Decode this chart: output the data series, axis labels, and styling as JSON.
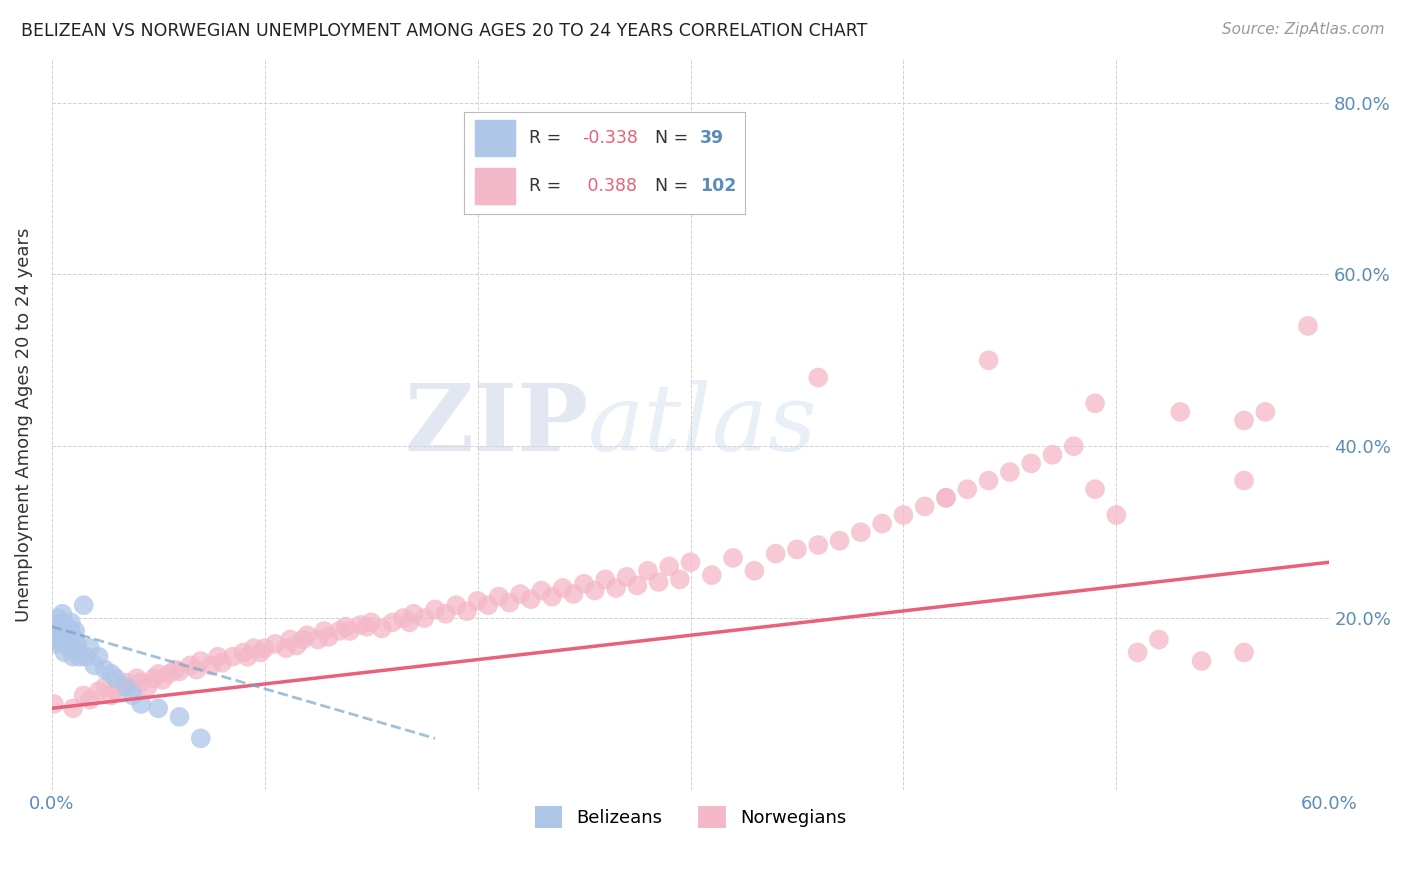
{
  "title": "BELIZEAN VS NORWEGIAN UNEMPLOYMENT AMONG AGES 20 TO 24 YEARS CORRELATION CHART",
  "source": "Source: ZipAtlas.com",
  "ylabel": "Unemployment Among Ages 20 to 24 years",
  "xlim": [
    0.0,
    0.6
  ],
  "ylim": [
    0.0,
    0.85
  ],
  "xticks": [
    0.0,
    0.1,
    0.2,
    0.3,
    0.4,
    0.5,
    0.6
  ],
  "xlabel_ticks": [
    "0.0%",
    "",
    "",
    "",
    "",
    "",
    "60.0%"
  ],
  "right_ytick_labels": [
    "20.0%",
    "40.0%",
    "60.0%",
    "80.0%"
  ],
  "right_yticks": [
    0.2,
    0.4,
    0.6,
    0.8
  ],
  "legend_r_belizean": "-0.338",
  "legend_n_belizean": "39",
  "legend_r_norwegian": "0.388",
  "legend_n_norwegian": "102",
  "belizean_color": "#aec6e8",
  "norwegian_color": "#f4b8c8",
  "belizean_line_color": "#6fa0c8",
  "norwegian_line_color": "#e8607a",
  "background_color": "#ffffff",
  "watermark_zip": "ZIP",
  "watermark_atlas": "atlas",
  "belizean_x": [
    0.001,
    0.001,
    0.002,
    0.002,
    0.003,
    0.003,
    0.004,
    0.004,
    0.005,
    0.005,
    0.006,
    0.006,
    0.007,
    0.007,
    0.008,
    0.008,
    0.009,
    0.009,
    0.01,
    0.01,
    0.011,
    0.011,
    0.012,
    0.012,
    0.013,
    0.015,
    0.016,
    0.018,
    0.02,
    0.022,
    0.025,
    0.028,
    0.03,
    0.035,
    0.038,
    0.042,
    0.05,
    0.06,
    0.07
  ],
  "belizean_y": [
    0.175,
    0.185,
    0.17,
    0.18,
    0.19,
    0.2,
    0.175,
    0.185,
    0.195,
    0.205,
    0.16,
    0.17,
    0.18,
    0.19,
    0.165,
    0.175,
    0.185,
    0.195,
    0.155,
    0.165,
    0.175,
    0.185,
    0.16,
    0.17,
    0.155,
    0.215,
    0.155,
    0.165,
    0.145,
    0.155,
    0.14,
    0.135,
    0.13,
    0.12,
    0.11,
    0.1,
    0.095,
    0.085,
    0.06
  ],
  "norwegian_x": [
    0.001,
    0.01,
    0.015,
    0.018,
    0.022,
    0.025,
    0.028,
    0.03,
    0.032,
    0.035,
    0.038,
    0.04,
    0.042,
    0.045,
    0.048,
    0.05,
    0.052,
    0.055,
    0.058,
    0.06,
    0.065,
    0.068,
    0.07,
    0.075,
    0.078,
    0.08,
    0.085,
    0.09,
    0.092,
    0.095,
    0.098,
    0.1,
    0.105,
    0.11,
    0.112,
    0.115,
    0.118,
    0.12,
    0.125,
    0.128,
    0.13,
    0.135,
    0.138,
    0.14,
    0.145,
    0.148,
    0.15,
    0.155,
    0.16,
    0.165,
    0.168,
    0.17,
    0.175,
    0.18,
    0.185,
    0.19,
    0.195,
    0.2,
    0.205,
    0.21,
    0.215,
    0.22,
    0.225,
    0.23,
    0.235,
    0.24,
    0.245,
    0.25,
    0.255,
    0.26,
    0.265,
    0.27,
    0.275,
    0.28,
    0.285,
    0.29,
    0.295,
    0.3,
    0.31,
    0.32,
    0.33,
    0.34,
    0.35,
    0.36,
    0.37,
    0.38,
    0.39,
    0.4,
    0.41,
    0.42,
    0.43,
    0.44,
    0.45,
    0.46,
    0.47,
    0.48,
    0.49,
    0.5,
    0.51,
    0.52,
    0.54,
    0.56
  ],
  "norwegian_y": [
    0.1,
    0.095,
    0.11,
    0.105,
    0.115,
    0.12,
    0.11,
    0.115,
    0.12,
    0.125,
    0.118,
    0.13,
    0.125,
    0.12,
    0.13,
    0.135,
    0.128,
    0.135,
    0.14,
    0.138,
    0.145,
    0.14,
    0.15,
    0.145,
    0.155,
    0.148,
    0.155,
    0.16,
    0.155,
    0.165,
    0.16,
    0.165,
    0.17,
    0.165,
    0.175,
    0.168,
    0.175,
    0.18,
    0.175,
    0.185,
    0.178,
    0.185,
    0.19,
    0.185,
    0.192,
    0.19,
    0.195,
    0.188,
    0.195,
    0.2,
    0.195,
    0.205,
    0.2,
    0.21,
    0.205,
    0.215,
    0.208,
    0.22,
    0.215,
    0.225,
    0.218,
    0.228,
    0.222,
    0.232,
    0.225,
    0.235,
    0.228,
    0.24,
    0.232,
    0.245,
    0.235,
    0.248,
    0.238,
    0.255,
    0.242,
    0.26,
    0.245,
    0.265,
    0.25,
    0.27,
    0.255,
    0.275,
    0.28,
    0.285,
    0.29,
    0.3,
    0.31,
    0.32,
    0.33,
    0.34,
    0.35,
    0.36,
    0.37,
    0.38,
    0.39,
    0.4,
    0.35,
    0.32,
    0.16,
    0.175,
    0.15,
    0.16
  ],
  "norwegian_outliers_x": [
    0.44,
    0.49,
    0.53,
    0.56,
    0.59,
    0.57,
    0.56,
    0.36,
    0.42
  ],
  "norwegian_outliers_y": [
    0.5,
    0.45,
    0.44,
    0.43,
    0.54,
    0.44,
    0.36,
    0.48,
    0.34
  ],
  "no_trendline_x0": 0.0,
  "no_trendline_y0": 0.095,
  "no_trendline_x1": 0.6,
  "no_trendline_y1": 0.265,
  "be_trendline_x0": 0.0,
  "be_trendline_y0": 0.19,
  "be_trendline_x1": 0.18,
  "be_trendline_y1": 0.06
}
